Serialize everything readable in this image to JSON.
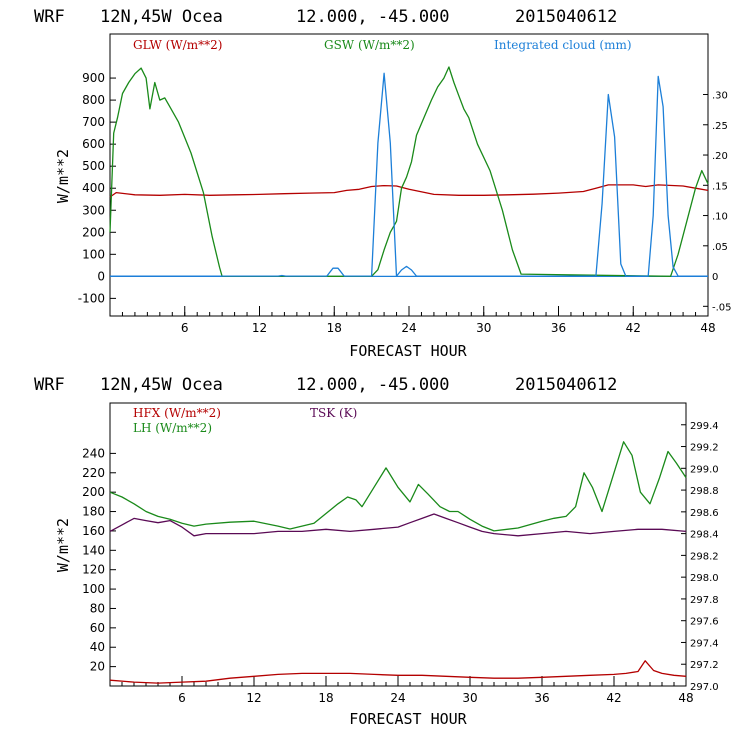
{
  "colors": {
    "red": "#b40000",
    "green": "#1a8a1a",
    "blue": "#1c7fd8",
    "purple": "#5a0a55",
    "frame": "#000000"
  },
  "chart_data": [
    {
      "type": "line",
      "header": [
        "WRF",
        "12N,45W Ocea",
        "12.000, -45.000",
        "2015040612"
      ],
      "xlabel": "FORECAST HOUR",
      "ylabel": "W/m**2",
      "xlim": [
        0,
        48
      ],
      "ylim": [
        -180,
        1100
      ],
      "y2lim": [
        -0.066,
        0.4
      ],
      "xticks": [
        6,
        12,
        18,
        24,
        30,
        36,
        42,
        48
      ],
      "yticks": [
        -100,
        0,
        100,
        200,
        300,
        400,
        500,
        600,
        700,
        800,
        900
      ],
      "ytick_labels": [
        "-100",
        "0",
        "100",
        "200",
        "300",
        "400",
        "500",
        "600",
        "700",
        "800",
        "900"
      ],
      "y2ticks": [
        -0.05,
        0,
        0.05,
        0.1,
        0.15,
        0.2,
        0.25,
        0.3
      ],
      "y2tick_labels": [
        "-.05",
        "0",
        ".05",
        ".10",
        ".15",
        ".20",
        ".25",
        ".30"
      ],
      "legend_placement": "top",
      "series": [
        {
          "name": "GLW (W/m**2)",
          "axis": "left",
          "color": "red",
          "x": [
            0,
            0.5,
            2,
            4,
            6,
            8,
            10,
            12,
            14,
            16,
            18,
            19,
            20,
            21,
            22,
            23,
            24,
            26,
            28,
            30,
            32,
            34,
            36,
            38,
            39,
            40,
            42,
            43,
            44,
            46,
            47,
            48
          ],
          "y": [
            360,
            380,
            370,
            368,
            372,
            368,
            370,
            372,
            375,
            378,
            380,
            390,
            395,
            408,
            412,
            410,
            395,
            372,
            368,
            368,
            370,
            373,
            378,
            385,
            400,
            415,
            415,
            408,
            415,
            410,
            400,
            390
          ]
        },
        {
          "name": "GSW (W/m**2)",
          "axis": "left",
          "color": "green",
          "x": [
            0,
            0.3,
            0.6,
            1,
            1.5,
            2,
            2.5,
            2.9,
            3.2,
            3.6,
            4,
            4.4,
            4.8,
            5.5,
            6.5,
            7.5,
            8.2,
            8.8,
            9,
            21,
            21.5,
            22,
            22.5,
            23,
            23.4,
            23.8,
            24.2,
            24.6,
            25.2,
            25.8,
            26.3,
            26.8,
            27.2,
            27.6,
            28,
            28.4,
            28.8,
            29.5,
            30.5,
            31.5,
            32.3,
            33,
            45,
            45.6,
            46.3,
            47,
            47.5,
            48
          ],
          "y": [
            200,
            650,
            720,
            830,
            880,
            920,
            945,
            900,
            760,
            880,
            800,
            810,
            770,
            700,
            560,
            380,
            180,
            40,
            0,
            0,
            30,
            120,
            200,
            250,
            400,
            450,
            520,
            640,
            720,
            800,
            860,
            900,
            950,
            880,
            820,
            760,
            720,
            600,
            480,
            300,
            120,
            10,
            0,
            100,
            250,
            400,
            480,
            420
          ]
        },
        {
          "name": "Integrated cloud (mm)",
          "axis": "right",
          "color": "blue",
          "x": [
            0,
            13.5,
            13.8,
            14.1,
            17.4,
            17.9,
            18.3,
            18.8,
            21,
            21.5,
            22,
            22.5,
            23,
            23.4,
            23.8,
            24.2,
            24.6,
            39,
            39.5,
            40,
            40.5,
            41,
            41.4,
            43.2,
            43.6,
            44,
            44.4,
            44.8,
            45.2,
            45.6,
            48
          ],
          "y": [
            0,
            0,
            0.001,
            0,
            0,
            0.013,
            0.013,
            0,
            0,
            0.22,
            0.335,
            0.22,
            0,
            0.01,
            0.016,
            0.01,
            0,
            0,
            0.12,
            0.3,
            0.23,
            0.02,
            0,
            0,
            0.1,
            0.33,
            0.28,
            0.1,
            0.015,
            0,
            0
          ]
        }
      ]
    },
    {
      "type": "line",
      "header": [
        "WRF",
        "12N,45W Ocea",
        "12.000, -45.000",
        "2015040612"
      ],
      "xlabel": "FORECAST HOUR",
      "ylabel": "W/m**2",
      "xlim": [
        0,
        48
      ],
      "ylim": [
        0,
        292
      ],
      "y2lim": [
        297.0,
        299.6
      ],
      "xticks": [
        6,
        12,
        18,
        24,
        30,
        36,
        42,
        48
      ],
      "yticks": [
        20,
        40,
        60,
        80,
        100,
        120,
        140,
        160,
        180,
        200,
        220,
        240
      ],
      "ytick_labels": [
        "20",
        "40",
        "60",
        "80",
        "100",
        "120",
        "140",
        "160",
        "180",
        "200",
        "220",
        "240"
      ],
      "y2ticks": [
        297.0,
        297.2,
        297.4,
        297.6,
        297.8,
        298.0,
        298.2,
        298.4,
        298.6,
        298.8,
        299.0,
        299.2,
        299.4
      ],
      "y2tick_labels": [
        "297.0",
        "297.2",
        "297.4",
        "297.6",
        "297.8",
        "298.0",
        "298.2",
        "298.4",
        "298.6",
        "298.8",
        "299.0",
        "299.2",
        "299.4"
      ],
      "legend_placement": "top",
      "series": [
        {
          "name": "HFX (W/m**2)",
          "axis": "left",
          "color": "red",
          "x": [
            0,
            2,
            4,
            6,
            8,
            10,
            12,
            14,
            16,
            18,
            20,
            22,
            24,
            26,
            28,
            30,
            32,
            34,
            36,
            38,
            40,
            42,
            43,
            44,
            44.6,
            45.3,
            46,
            47,
            48
          ],
          "y": [
            6,
            4,
            3,
            4,
            5,
            8,
            10,
            12,
            13,
            13,
            13,
            12,
            11,
            11,
            10,
            9,
            8,
            8,
            9,
            10,
            11,
            12,
            13,
            15,
            26,
            16,
            13,
            11,
            10
          ]
        },
        {
          "name": "LH  (W/m**2)",
          "axis": "left",
          "color": "green",
          "x": [
            0,
            1,
            2,
            3,
            4,
            5,
            6,
            7,
            8,
            10,
            12,
            14,
            15,
            16,
            17,
            18,
            19,
            19.8,
            20.5,
            21,
            22,
            23,
            24,
            25,
            25.7,
            26.5,
            27.5,
            28.3,
            29,
            30,
            31,
            32,
            34,
            36,
            37,
            38,
            38.8,
            39.5,
            40.2,
            41,
            42,
            42.8,
            43.5,
            44.2,
            45,
            45.8,
            46.5,
            47.2,
            48
          ],
          "y": [
            200,
            195,
            188,
            180,
            175,
            172,
            168,
            165,
            167,
            169,
            170,
            165,
            162,
            165,
            168,
            178,
            188,
            195,
            192,
            185,
            205,
            225,
            205,
            190,
            208,
            198,
            185,
            180,
            180,
            172,
            165,
            160,
            163,
            170,
            173,
            175,
            185,
            220,
            205,
            180,
            220,
            252,
            238,
            200,
            188,
            215,
            242,
            230,
            215
          ]
        },
        {
          "name": "TSK (K)",
          "axis": "right",
          "color": "purple",
          "x": [
            0,
            1,
            2,
            3,
            4,
            5,
            6,
            7,
            8,
            10,
            12,
            14,
            16,
            18,
            20,
            22,
            24,
            25,
            26,
            27,
            28,
            29,
            30,
            31,
            32,
            34,
            36,
            38,
            40,
            42,
            44,
            46,
            48
          ],
          "y": [
            298.42,
            298.48,
            298.54,
            298.52,
            298.5,
            298.52,
            298.46,
            298.38,
            298.4,
            298.4,
            298.4,
            298.42,
            298.42,
            298.44,
            298.42,
            298.44,
            298.46,
            298.5,
            298.54,
            298.58,
            298.54,
            298.5,
            298.46,
            298.42,
            298.4,
            298.38,
            298.4,
            298.42,
            298.4,
            298.42,
            298.44,
            298.44,
            298.42
          ]
        }
      ]
    }
  ]
}
